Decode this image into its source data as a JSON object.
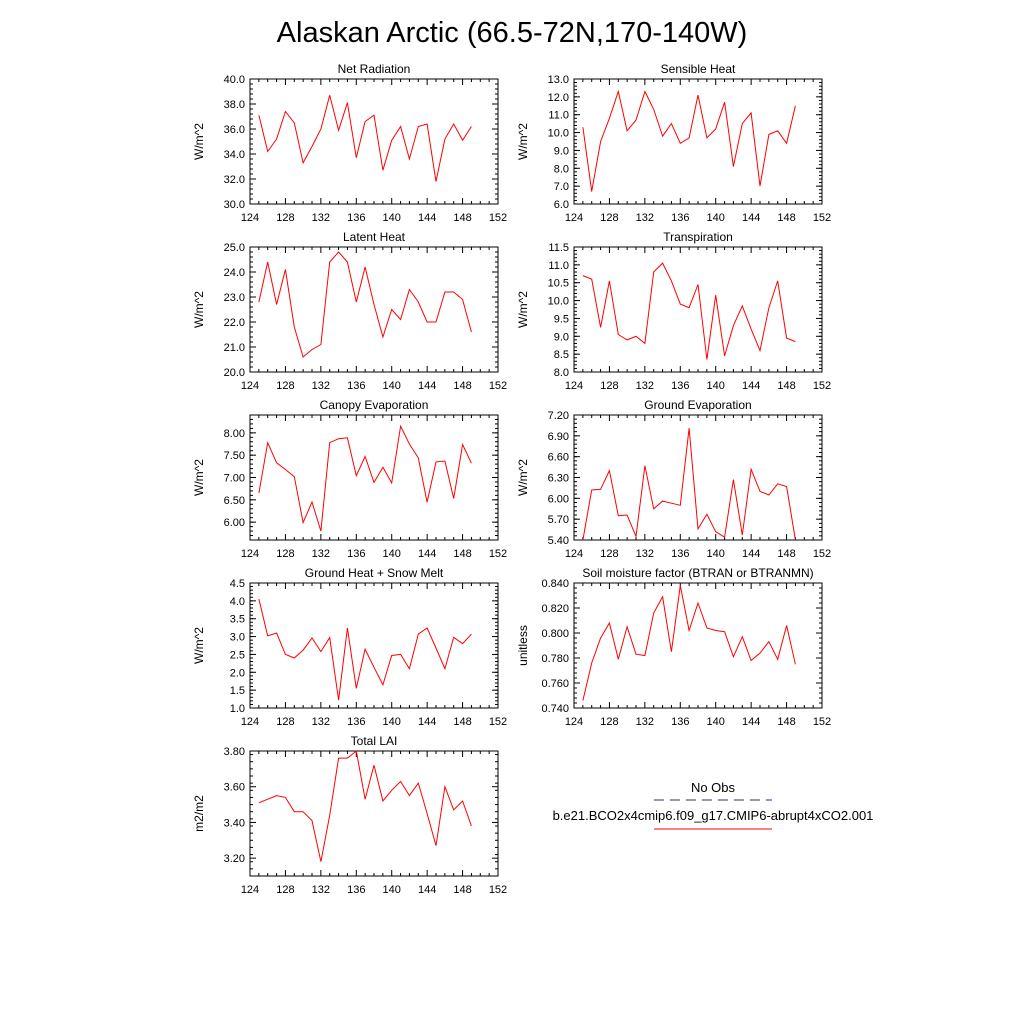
{
  "figure": {
    "title": "Alaskan Arctic (66.5-72N,170-140W)"
  },
  "legend": {
    "entries": [
      {
        "label": "No Obs",
        "color": "#2a2a8a",
        "dash": "dashed"
      },
      {
        "label": "b.e21.BCO2x4cmip6.f09_g17.CMIP6-abrupt4xCO2.001",
        "color": "#ff0000",
        "dash": "solid"
      }
    ]
  },
  "chart_data": [
    {
      "type": "line",
      "title": "Net Radiation",
      "ylabel": "W/m^2",
      "xlim": [
        124,
        152
      ],
      "ylim": [
        30,
        40
      ],
      "xticks": [
        124,
        128,
        132,
        136,
        140,
        144,
        148,
        152
      ],
      "yticks": [
        30,
        32,
        34,
        36,
        38,
        40
      ],
      "ytick_labels": [
        "30.0",
        "32.0",
        "34.0",
        "36.0",
        "38.0",
        "40.0"
      ],
      "x": [
        125,
        126,
        127,
        128,
        129,
        130,
        131,
        132,
        133,
        134,
        135,
        136,
        137,
        138,
        139,
        140,
        141,
        142,
        143,
        144,
        145,
        146,
        147,
        148,
        149
      ],
      "series": [
        {
          "color": "#ff0000",
          "values": [
            37.1,
            34.2,
            35.2,
            37.4,
            36.5,
            33.3,
            34.6,
            36.0,
            38.7,
            35.9,
            38.1,
            33.7,
            36.6,
            37.1,
            32.7,
            35.1,
            36.2,
            33.6,
            36.2,
            36.4,
            31.8,
            35.2,
            36.4,
            35.1,
            36.2
          ]
        }
      ]
    },
    {
      "type": "line",
      "title": "Sensible Heat",
      "ylabel": "W/m^2",
      "xlim": [
        124,
        152
      ],
      "ylim": [
        6,
        13
      ],
      "xticks": [
        124,
        128,
        132,
        136,
        140,
        144,
        148,
        152
      ],
      "yticks": [
        6,
        7,
        8,
        9,
        10,
        11,
        12,
        13
      ],
      "ytick_labels": [
        "6.0",
        "7.0",
        "8.0",
        "9.0",
        "10.0",
        "11.0",
        "12.0",
        "13.0"
      ],
      "x": [
        125,
        126,
        127,
        128,
        129,
        130,
        131,
        132,
        133,
        134,
        135,
        136,
        137,
        138,
        139,
        140,
        141,
        142,
        143,
        144,
        145,
        146,
        147,
        148,
        149
      ],
      "series": [
        {
          "color": "#ff0000",
          "values": [
            10.3,
            6.7,
            9.5,
            10.8,
            12.3,
            10.1,
            10.7,
            12.3,
            11.3,
            9.8,
            10.5,
            9.4,
            9.7,
            12.1,
            9.7,
            10.2,
            11.7,
            8.1,
            10.5,
            11.1,
            7.0,
            9.9,
            10.1,
            9.4,
            11.5
          ]
        }
      ]
    },
    {
      "type": "line",
      "title": "Latent Heat",
      "ylabel": "W/m^2",
      "xlim": [
        124,
        152
      ],
      "ylim": [
        20,
        25
      ],
      "xticks": [
        124,
        128,
        132,
        136,
        140,
        144,
        148,
        152
      ],
      "yticks": [
        20,
        21,
        22,
        23,
        24,
        25
      ],
      "ytick_labels": [
        "20.0",
        "21.0",
        "22.0",
        "23.0",
        "24.0",
        "25.0"
      ],
      "x": [
        125,
        126,
        127,
        128,
        129,
        130,
        131,
        132,
        133,
        134,
        135,
        136,
        137,
        138,
        139,
        140,
        141,
        142,
        143,
        144,
        145,
        146,
        147,
        148,
        149
      ],
      "series": [
        {
          "color": "#ff0000",
          "values": [
            22.8,
            24.4,
            22.7,
            24.1,
            21.8,
            20.6,
            20.9,
            21.1,
            24.4,
            24.8,
            24.4,
            22.8,
            24.2,
            22.7,
            21.4,
            22.5,
            22.1,
            23.3,
            22.8,
            22.0,
            22.0,
            23.2,
            23.2,
            22.9,
            21.6
          ]
        }
      ]
    },
    {
      "type": "line",
      "title": "Transpiration",
      "ylabel": "W/m^2",
      "xlim": [
        124,
        152
      ],
      "ylim": [
        8,
        11.5
      ],
      "xticks": [
        124,
        128,
        132,
        136,
        140,
        144,
        148,
        152
      ],
      "yticks": [
        8,
        8.5,
        9,
        9.5,
        10,
        10.5,
        11,
        11.5
      ],
      "ytick_labels": [
        "8.0",
        "8.5",
        "9.0",
        "9.5",
        "10.0",
        "10.5",
        "11.0",
        "11.5"
      ],
      "x": [
        125,
        126,
        127,
        128,
        129,
        130,
        131,
        132,
        133,
        134,
        135,
        136,
        137,
        138,
        139,
        140,
        141,
        142,
        143,
        144,
        145,
        146,
        147,
        148,
        149
      ],
      "series": [
        {
          "color": "#ff0000",
          "values": [
            10.7,
            10.6,
            9.25,
            10.55,
            9.05,
            8.9,
            9.0,
            8.8,
            10.8,
            11.05,
            10.55,
            9.9,
            9.8,
            10.45,
            8.35,
            10.15,
            8.45,
            9.3,
            9.85,
            9.2,
            8.6,
            9.8,
            10.55,
            8.95,
            8.85
          ]
        }
      ]
    },
    {
      "type": "line",
      "title": "Canopy Evaporation",
      "ylabel": "W/m^2",
      "xlim": [
        124,
        152
      ],
      "ylim": [
        5.6,
        8.4
      ],
      "xticks": [
        124,
        128,
        132,
        136,
        140,
        144,
        148,
        152
      ],
      "yticks": [
        6,
        6.5,
        7,
        7.5,
        8
      ],
      "ytick_labels": [
        "6.00",
        "6.50",
        "7.00",
        "7.50",
        "8.00"
      ],
      "x": [
        125,
        126,
        127,
        128,
        129,
        130,
        131,
        132,
        133,
        134,
        135,
        136,
        137,
        138,
        139,
        140,
        141,
        142,
        143,
        144,
        145,
        146,
        147,
        148,
        149
      ],
      "series": [
        {
          "color": "#ff0000",
          "values": [
            6.65,
            7.78,
            7.33,
            7.18,
            7.02,
            5.99,
            6.45,
            5.8,
            7.78,
            7.87,
            7.89,
            7.04,
            7.47,
            6.89,
            7.23,
            6.88,
            8.15,
            7.75,
            7.44,
            6.45,
            7.35,
            7.37,
            6.53,
            7.74,
            7.32
          ]
        }
      ]
    },
    {
      "type": "line",
      "title": "Ground Evaporation",
      "ylabel": "W/m^2",
      "xlim": [
        124,
        152
      ],
      "ylim": [
        5.4,
        7.2
      ],
      "xticks": [
        124,
        128,
        132,
        136,
        140,
        144,
        148,
        152
      ],
      "yticks": [
        5.4,
        5.7,
        6.0,
        6.3,
        6.6,
        6.9,
        7.2
      ],
      "ytick_labels": [
        "5.40",
        "5.70",
        "6.00",
        "6.30",
        "6.60",
        "6.90",
        "7.20"
      ],
      "x": [
        125,
        126,
        127,
        128,
        129,
        130,
        131,
        132,
        133,
        134,
        135,
        136,
        137,
        138,
        139,
        140,
        141,
        142,
        143,
        144,
        145,
        146,
        147,
        148,
        149
      ],
      "series": [
        {
          "color": "#ff0000",
          "values": [
            5.4,
            6.12,
            6.13,
            6.4,
            5.75,
            5.76,
            5.45,
            6.47,
            5.85,
            5.96,
            5.93,
            5.9,
            7.01,
            5.56,
            5.77,
            5.52,
            5.44,
            6.27,
            5.47,
            6.42,
            6.1,
            6.05,
            6.21,
            6.17,
            5.4
          ]
        }
      ]
    },
    {
      "type": "line",
      "title": "Ground Heat + Snow Melt",
      "ylabel": "W/m^2",
      "xlim": [
        124,
        152
      ],
      "ylim": [
        1,
        4.5
      ],
      "xticks": [
        124,
        128,
        132,
        136,
        140,
        144,
        148,
        152
      ],
      "yticks": [
        1,
        1.5,
        2,
        2.5,
        3,
        3.5,
        4,
        4.5
      ],
      "ytick_labels": [
        "1.0",
        "1.5",
        "2.0",
        "2.5",
        "3.0",
        "3.5",
        "4.0",
        "4.5"
      ],
      "x": [
        125,
        126,
        127,
        128,
        129,
        130,
        131,
        132,
        133,
        134,
        135,
        136,
        137,
        138,
        139,
        140,
        141,
        142,
        143,
        144,
        145,
        146,
        147,
        148,
        149
      ],
      "series": [
        {
          "color": "#ff0000",
          "values": [
            4.05,
            3.02,
            3.1,
            2.5,
            2.4,
            2.62,
            2.96,
            2.58,
            2.97,
            1.22,
            3.24,
            1.55,
            2.65,
            2.14,
            1.65,
            2.47,
            2.5,
            2.1,
            3.07,
            3.24,
            2.68,
            2.1,
            2.98,
            2.8,
            3.07
          ]
        }
      ]
    },
    {
      "type": "line",
      "title": "Soil moisture factor (BTRAN or BTRANMN)",
      "ylabel": "unitless",
      "xlim": [
        124,
        152
      ],
      "ylim": [
        0.74,
        0.84
      ],
      "xticks": [
        124,
        128,
        132,
        136,
        140,
        144,
        148,
        152
      ],
      "yticks": [
        0.74,
        0.76,
        0.78,
        0.8,
        0.82,
        0.84
      ],
      "ytick_labels": [
        "0.740",
        "0.760",
        "0.780",
        "0.800",
        "0.820",
        "0.840"
      ],
      "x": [
        125,
        126,
        127,
        128,
        129,
        130,
        131,
        132,
        133,
        134,
        135,
        136,
        137,
        138,
        139,
        140,
        141,
        142,
        143,
        144,
        145,
        146,
        147,
        148,
        149
      ],
      "series": [
        {
          "color": "#ff0000",
          "values": [
            0.746,
            0.776,
            0.796,
            0.808,
            0.779,
            0.805,
            0.783,
            0.782,
            0.816,
            0.829,
            0.785,
            0.838,
            0.802,
            0.824,
            0.804,
            0.802,
            0.801,
            0.781,
            0.797,
            0.778,
            0.784,
            0.793,
            0.779,
            0.806,
            0.775
          ]
        }
      ]
    },
    {
      "type": "line",
      "title": "Total LAI",
      "ylabel": "m2/m2",
      "xlim": [
        124,
        152
      ],
      "ylim": [
        3.1,
        3.8
      ],
      "xticks": [
        124,
        128,
        132,
        136,
        140,
        144,
        148,
        152
      ],
      "yticks": [
        3.2,
        3.4,
        3.6,
        3.8
      ],
      "ytick_labels": [
        "3.20",
        "3.40",
        "3.60",
        "3.80"
      ],
      "x": [
        125,
        126,
        127,
        128,
        129,
        130,
        131,
        132,
        133,
        134,
        135,
        136,
        137,
        138,
        139,
        140,
        141,
        142,
        143,
        144,
        145,
        146,
        147,
        148,
        149
      ],
      "series": [
        {
          "color": "#ff0000",
          "values": [
            3.51,
            3.53,
            3.55,
            3.54,
            3.46,
            3.46,
            3.41,
            3.18,
            3.44,
            3.76,
            3.76,
            3.8,
            3.53,
            3.72,
            3.52,
            3.58,
            3.63,
            3.55,
            3.62,
            3.45,
            3.27,
            3.6,
            3.47,
            3.52,
            3.38
          ]
        }
      ]
    }
  ]
}
